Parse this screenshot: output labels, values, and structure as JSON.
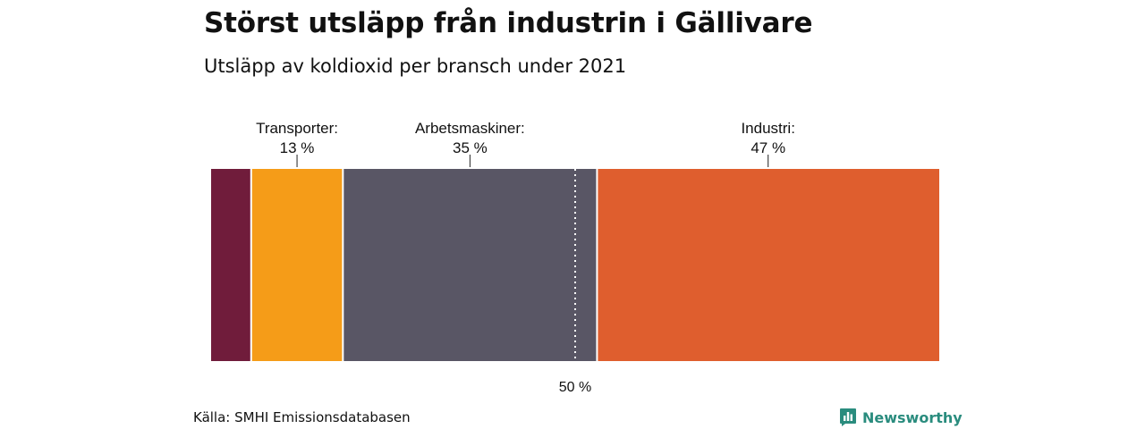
{
  "title": "Störst utsläpp från industrin i Gällivare",
  "subtitle": "Utsläpp av koldioxid per bransch under 2021",
  "source": "Källa: SMHI Emissionsdatabasen",
  "brand": "Newsworthy",
  "colors": {
    "brand": "#2a8c7e"
  },
  "chart_data": {
    "type": "bar",
    "stacked": true,
    "orientation": "horizontal",
    "unit": "%",
    "xlim": [
      0,
      100
    ],
    "reference_line": {
      "value": 50,
      "label": "50 %"
    },
    "series": [
      {
        "name": "",
        "value": 5.5,
        "color": "#701c3b",
        "label_name": "",
        "label_value": ""
      },
      {
        "name": "Transporter",
        "value": 12.6,
        "color": "#f59c18",
        "label_name": "Transporter:",
        "label_value": "13 %"
      },
      {
        "name": "Arbetsmaskiner",
        "value": 34.9,
        "color": "#595665",
        "label_name": "Arbetsmaskiner:",
        "label_value": "35 %"
      },
      {
        "name": "Industri",
        "value": 47.0,
        "color": "#df5e2e",
        "label_name": "Industri:",
        "label_value": "47 %"
      }
    ]
  }
}
